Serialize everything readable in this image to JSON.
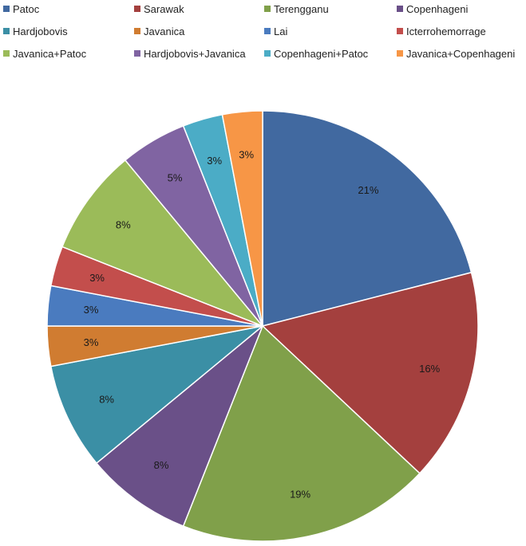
{
  "chart_data": {
    "type": "pie",
    "title": "",
    "legend_position": "top",
    "slices": [
      {
        "name": "Patoc",
        "value": 21,
        "label": "21%",
        "color": "#4169A0"
      },
      {
        "name": "Sarawak",
        "value": 16,
        "label": "16%",
        "color": "#A4403E"
      },
      {
        "name": "Terengganu",
        "value": 19,
        "label": "19%",
        "color": "#80A04A"
      },
      {
        "name": "Copenhageni",
        "value": 8,
        "label": "8%",
        "color": "#6A5088"
      },
      {
        "name": "Hardjobovis",
        "value": 8,
        "label": "8%",
        "color": "#3B8FA5"
      },
      {
        "name": "Javanica",
        "value": 3,
        "label": "3%",
        "color": "#D07C31"
      },
      {
        "name": "Lai",
        "value": 3,
        "label": "3%",
        "color": "#4A7BBF"
      },
      {
        "name": "Icterrohemorrage",
        "value": 3,
        "label": "3%",
        "color": "#C34E4C"
      },
      {
        "name": "Javanica+Patoc",
        "value": 8,
        "label": "8%",
        "color": "#9BBB59"
      },
      {
        "name": "Hardjobovis+Javanica",
        "value": 5,
        "label": "5%",
        "color": "#8064A2"
      },
      {
        "name": "Copenhageni+Patoc",
        "value": 3,
        "label": "3%",
        "color": "#4BACC6"
      },
      {
        "name": "Javanica+Copenhageni",
        "value": 3,
        "label": "3%",
        "color": "#F79646"
      }
    ]
  }
}
